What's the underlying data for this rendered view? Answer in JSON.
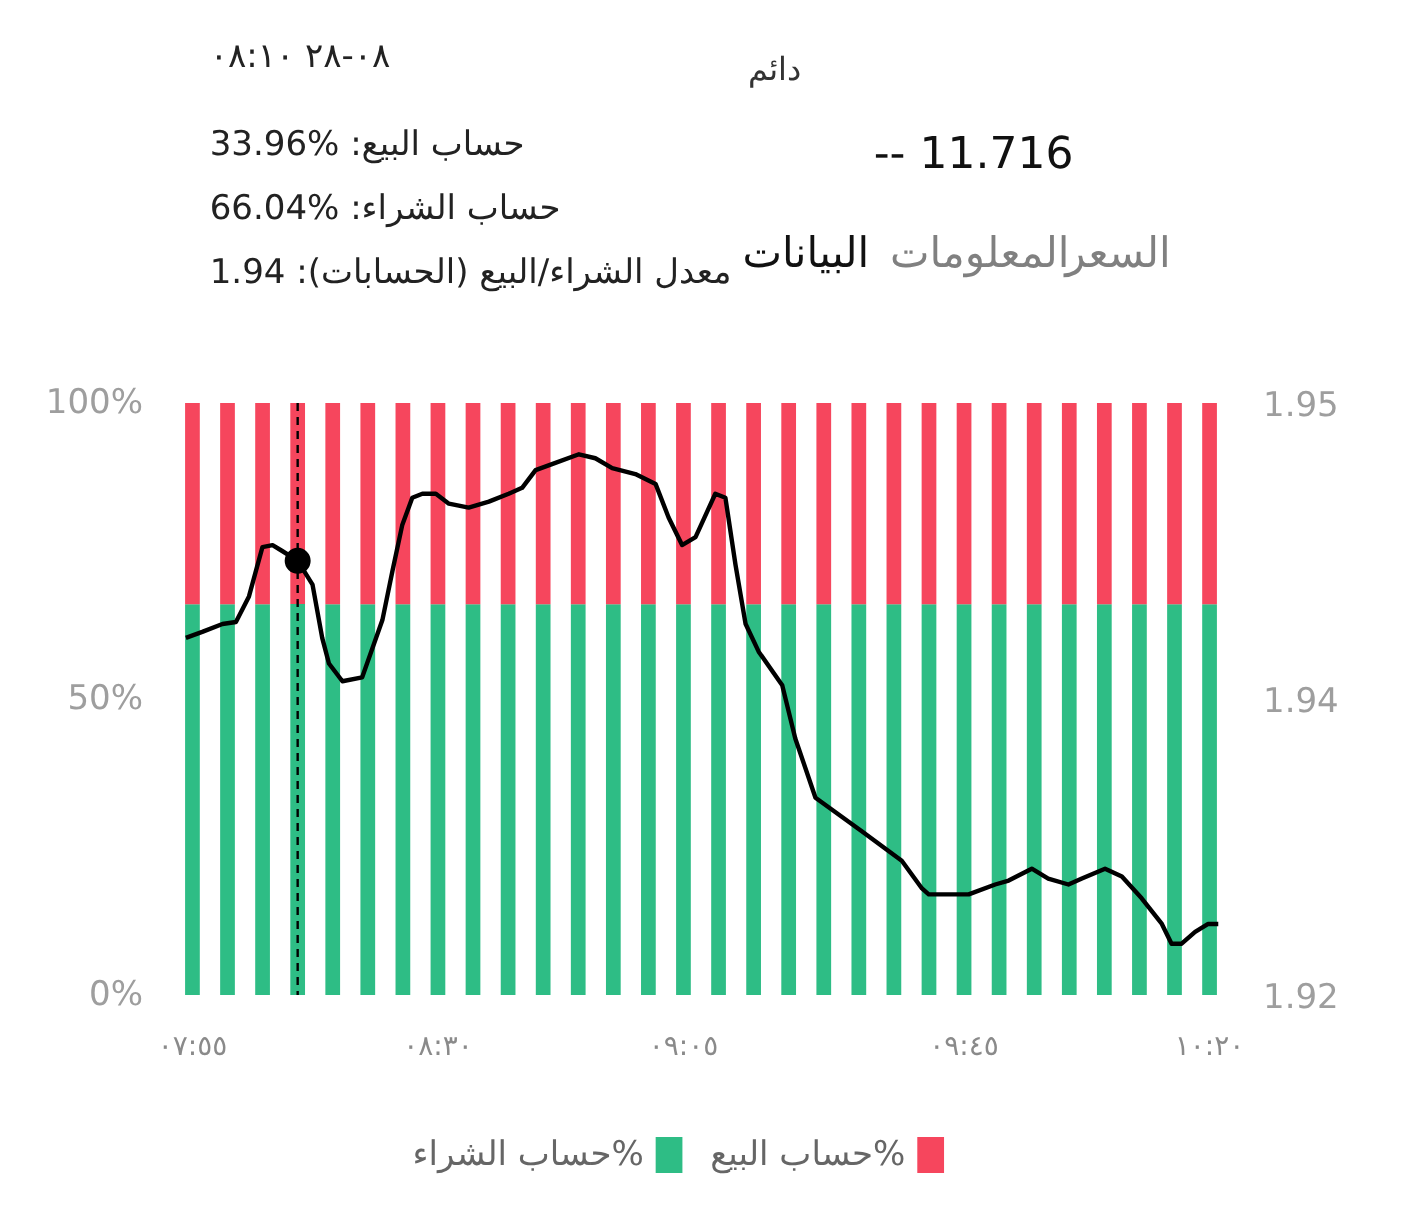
{
  "chart_data": {
    "type": "bar",
    "stacked": true,
    "x": [
      7.9167,
      8.0,
      8.0833,
      8.1667,
      8.25,
      8.3333,
      8.4167,
      8.5,
      8.5833,
      8.6667,
      8.75,
      8.8333,
      8.9167,
      9.0,
      9.0833,
      9.1667,
      9.25,
      9.3333,
      9.4167,
      9.5,
      9.5833,
      9.6667,
      9.75,
      9.8333,
      9.9167,
      10.0,
      10.0833,
      10.1667,
      10.25,
      10.3333
    ],
    "xlim": [
      7.88,
      10.37
    ],
    "xticks": [
      {
        "value": 7.9167,
        "label": "٠٧:٥٥"
      },
      {
        "value": 8.5,
        "label": "٠٨:٣٠"
      },
      {
        "value": 9.0833,
        "label": "٠٩:٠٥"
      },
      {
        "value": 9.75,
        "label": "٠٩:٤٥"
      },
      {
        "value": 10.3333,
        "label": "١٠:٢٠"
      }
    ],
    "ylim": [
      0,
      100
    ],
    "yticks": [
      {
        "value": 0,
        "label": "0%"
      },
      {
        "value": 50,
        "label": "50%"
      },
      {
        "value": 100,
        "label": "100%"
      }
    ],
    "y2lim": [
      1.92,
      1.95
    ],
    "y2ticks": [
      1.92,
      {
        "value": 1.935,
        "label": "1.94"
      },
      1.95
    ],
    "series": [
      {
        "name": "حساب الشراء%",
        "color": "#2ebd85",
        "values": [
          66,
          66,
          66,
          66.04,
          66,
          66,
          66,
          66,
          66,
          66,
          66,
          66,
          66,
          66,
          66,
          66,
          66,
          66,
          66,
          66,
          66,
          66,
          66,
          66,
          66,
          66,
          66,
          66,
          66,
          66
        ]
      },
      {
        "name": "حساب البيع%",
        "color": "#f6465d",
        "values": [
          34,
          34,
          34,
          33.96,
          34,
          34,
          34,
          34,
          34,
          34,
          34,
          34,
          34,
          34,
          34,
          34,
          34,
          34,
          34,
          34,
          34,
          34,
          34,
          34,
          34,
          34,
          34,
          34,
          34,
          34
        ]
      },
      {
        "type": "line",
        "axis": "y2",
        "color": "#000000",
        "x": [
          7.901,
          7.94,
          7.988,
          8.02,
          8.051,
          8.083,
          8.107,
          8.13,
          8.167,
          8.202,
          8.225,
          8.241,
          8.273,
          8.32,
          8.368,
          8.392,
          8.415,
          8.439,
          8.463,
          8.495,
          8.526,
          8.573,
          8.621,
          8.668,
          8.7,
          8.732,
          8.771,
          8.835,
          8.874,
          8.914,
          8.969,
          9.017,
          9.048,
          9.08,
          9.112,
          9.159,
          9.183,
          9.207,
          9.231,
          9.262,
          9.318,
          9.349,
          9.397,
          9.507,
          9.602,
          9.65,
          9.666,
          9.761,
          9.824,
          9.856,
          9.911,
          9.95,
          9.998,
          10.03,
          10.085,
          10.125,
          10.172,
          10.22,
          10.243,
          10.267,
          10.299,
          10.33,
          10.354
        ],
        "values": [
          1.9381,
          1.9384,
          1.9388,
          1.9389,
          1.9402,
          1.9427,
          1.9428,
          1.9425,
          1.942,
          1.9408,
          1.9381,
          1.9368,
          1.9359,
          1.9361,
          1.939,
          1.9415,
          1.9438,
          1.9452,
          1.9454,
          1.9454,
          1.9449,
          1.9447,
          1.945,
          1.9454,
          1.9457,
          1.9466,
          1.9469,
          1.9474,
          1.9472,
          1.9467,
          1.9464,
          1.9459,
          1.9442,
          1.9428,
          1.9432,
          1.9454,
          1.9452,
          1.9418,
          1.9388,
          1.9374,
          1.9357,
          1.933,
          1.93,
          1.9283,
          1.9268,
          1.9254,
          1.9251,
          1.9251,
          1.9256,
          1.9258,
          1.9264,
          1.9259,
          1.9256,
          1.9259,
          1.9264,
          1.926,
          1.9249,
          1.9236,
          1.9226,
          1.9226,
          1.9232,
          1.9236,
          1.9236
        ]
      },
      {
        "type": "scatter",
        "axis": "y2",
        "color": "#000000",
        "marker": "circle",
        "x": [
          8.1667
        ],
        "values": [
          1.942
        ]
      }
    ],
    "ref_lines": [
      {
        "axis": "x",
        "value": 8.1667,
        "color": "#000000",
        "line_style": "dashed"
      }
    ],
    "legend": "bottom",
    "annotations": [
      "دائم",
      "-- 11.716",
      "السعر",
      "المعلومات",
      "البيانات",
      "٠٨-٢٨ ٠٨:١٠",
      "حساب البيع: %33.96",
      "حساب الشراء: %66.04",
      "معدل الشراء/البيع (الحسابات): 1.94"
    ]
  }
}
